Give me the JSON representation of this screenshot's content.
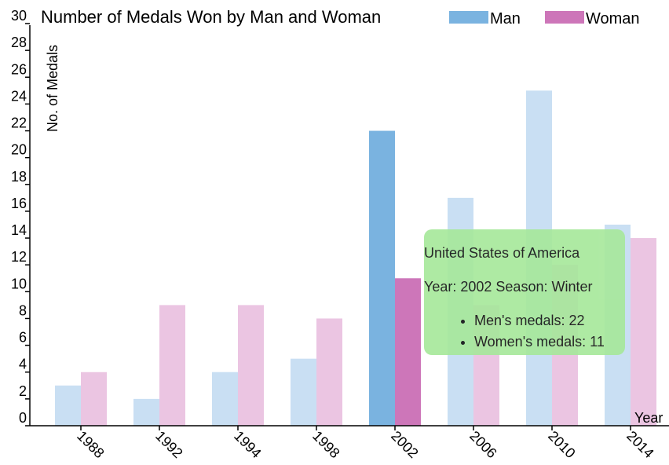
{
  "chart_data": {
    "type": "bar",
    "title": "Number of Medals Won by Man and Woman",
    "xlabel": "Year",
    "ylabel": "No. of Medals",
    "categories": [
      "1988",
      "1992",
      "1994",
      "1998",
      "2002",
      "2006",
      "2010",
      "2014"
    ],
    "series": [
      {
        "name": "Man",
        "values": [
          3,
          2,
          4,
          5,
          22,
          17,
          25,
          15
        ],
        "color": "#7ab3e0",
        "faded_color": "#c9dff3"
      },
      {
        "name": "Woman",
        "values": [
          4,
          9,
          9,
          8,
          11,
          9,
          12,
          14
        ],
        "color": "#cd76b9",
        "faded_color": "#ebc5e2"
      }
    ],
    "ylim": [
      0,
      30
    ],
    "yticks": [
      0,
      2,
      4,
      6,
      8,
      10,
      12,
      14,
      16,
      18,
      20,
      22,
      24,
      26,
      28,
      30
    ],
    "highlighted_category": "2002",
    "legend_position": "top-right",
    "grid": false
  },
  "tooltip": {
    "country": "United States of America",
    "year_season": "Year: 2002 Season: Winter",
    "men": "Men's medals: 22",
    "women": "Women's medals: 11",
    "background": "#a6e89a"
  }
}
